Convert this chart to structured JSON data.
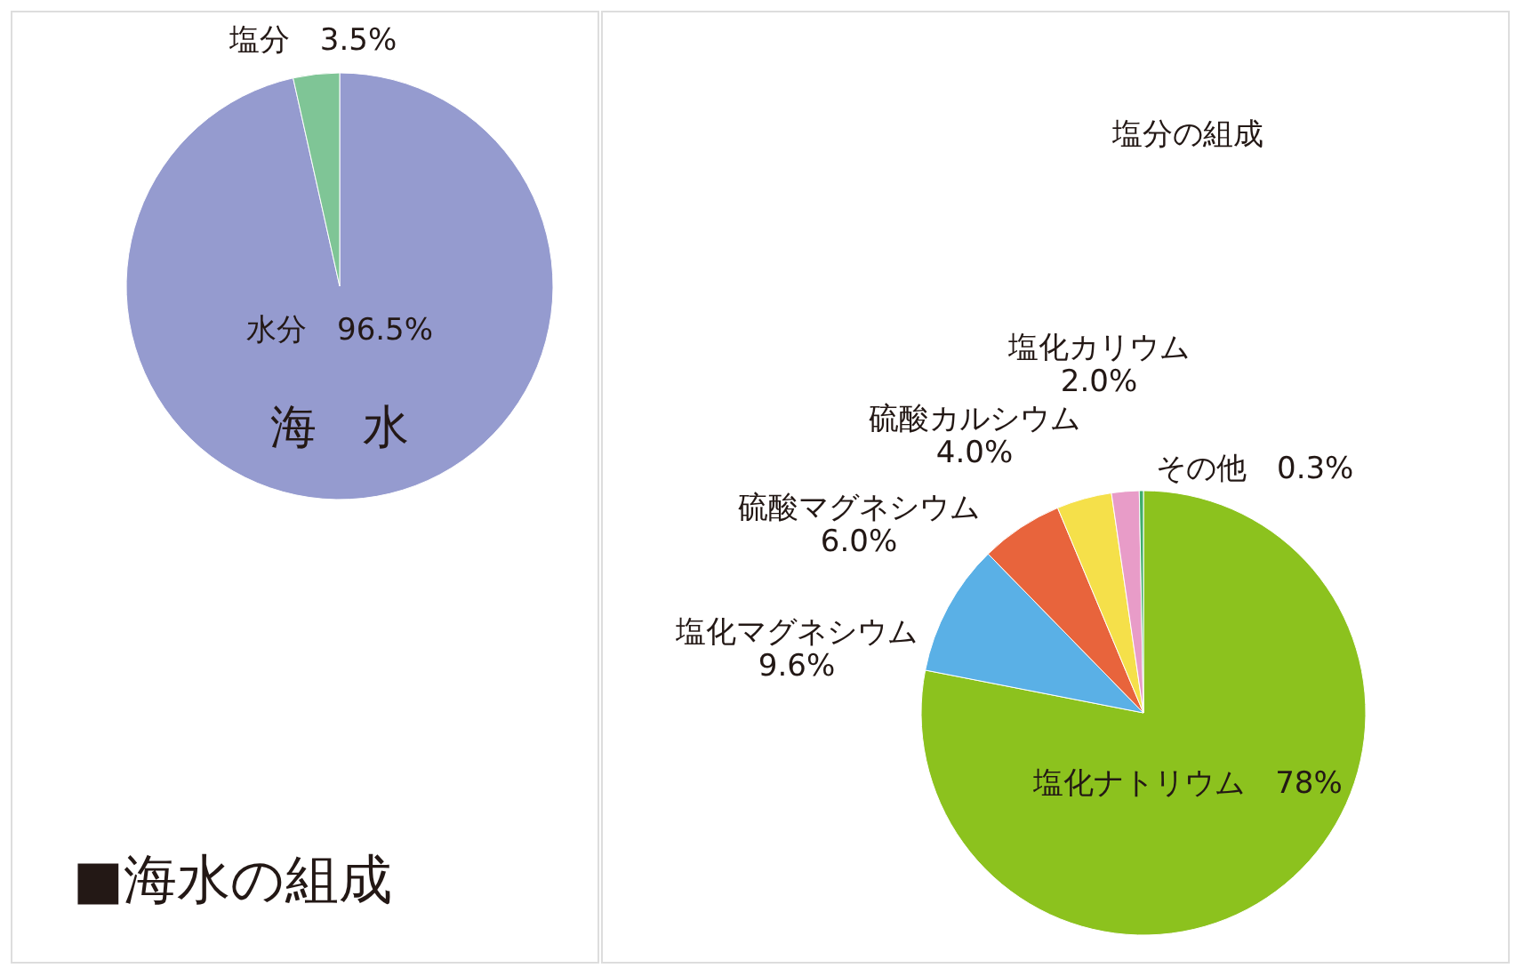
{
  "chart_data": [
    {
      "type": "pie",
      "title": "海　水",
      "categories": [
        "水分",
        "塩分"
      ],
      "values": [
        96.5,
        3.5
      ],
      "value_labels": [
        "96.5%",
        "3.5%"
      ],
      "colors": [
        "#959bcf",
        "#7fc596"
      ],
      "annotations": [
        "■海水の組成"
      ]
    },
    {
      "type": "pie",
      "title": "塩分の組成",
      "categories": [
        "塩化ナトリウム",
        "塩化マグネシウム",
        "硫酸マグネシウム",
        "硫酸カルシウム",
        "塩化カリウム",
        "その他"
      ],
      "values": [
        78,
        9.6,
        6.0,
        4.0,
        2.0,
        0.3
      ],
      "value_labels": [
        "78%",
        "9.6%",
        "6.0%",
        "4.0%",
        "2.0%",
        "0.3%"
      ],
      "colors": [
        "#8cc21e",
        "#5ab0e6",
        "#e8643c",
        "#f5e04a",
        "#e89cc8",
        "#3fae6a"
      ]
    }
  ]
}
